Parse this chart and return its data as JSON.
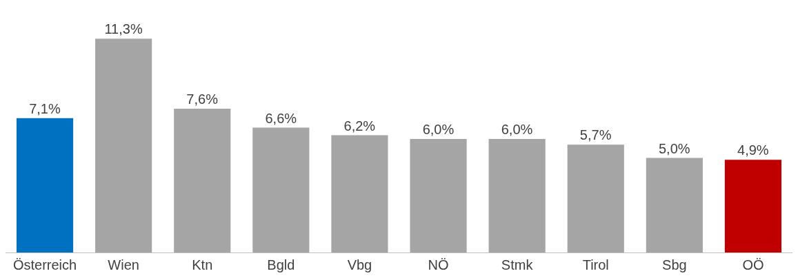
{
  "chart_data": {
    "type": "bar",
    "categories": [
      "Österreich",
      "Wien",
      "Ktn",
      "Bgld",
      "Vbg",
      "NÖ",
      "Stmk",
      "Tirol",
      "Sbg",
      "OÖ"
    ],
    "values": [
      7.1,
      11.3,
      7.6,
      6.6,
      6.2,
      6.0,
      6.0,
      5.7,
      5.0,
      4.9
    ],
    "colors": [
      "#0070c0",
      "#a5a5a5",
      "#a5a5a5",
      "#a5a5a5",
      "#a5a5a5",
      "#a5a5a5",
      "#a5a5a5",
      "#a5a5a5",
      "#a5a5a5",
      "#c00000"
    ],
    "value_labels": [
      "7,1%",
      "11,3%",
      "7,6%",
      "6,6%",
      "6,2%",
      "6,0%",
      "6,0%",
      "5,7%",
      "5,0%",
      "4,9%"
    ]
  }
}
